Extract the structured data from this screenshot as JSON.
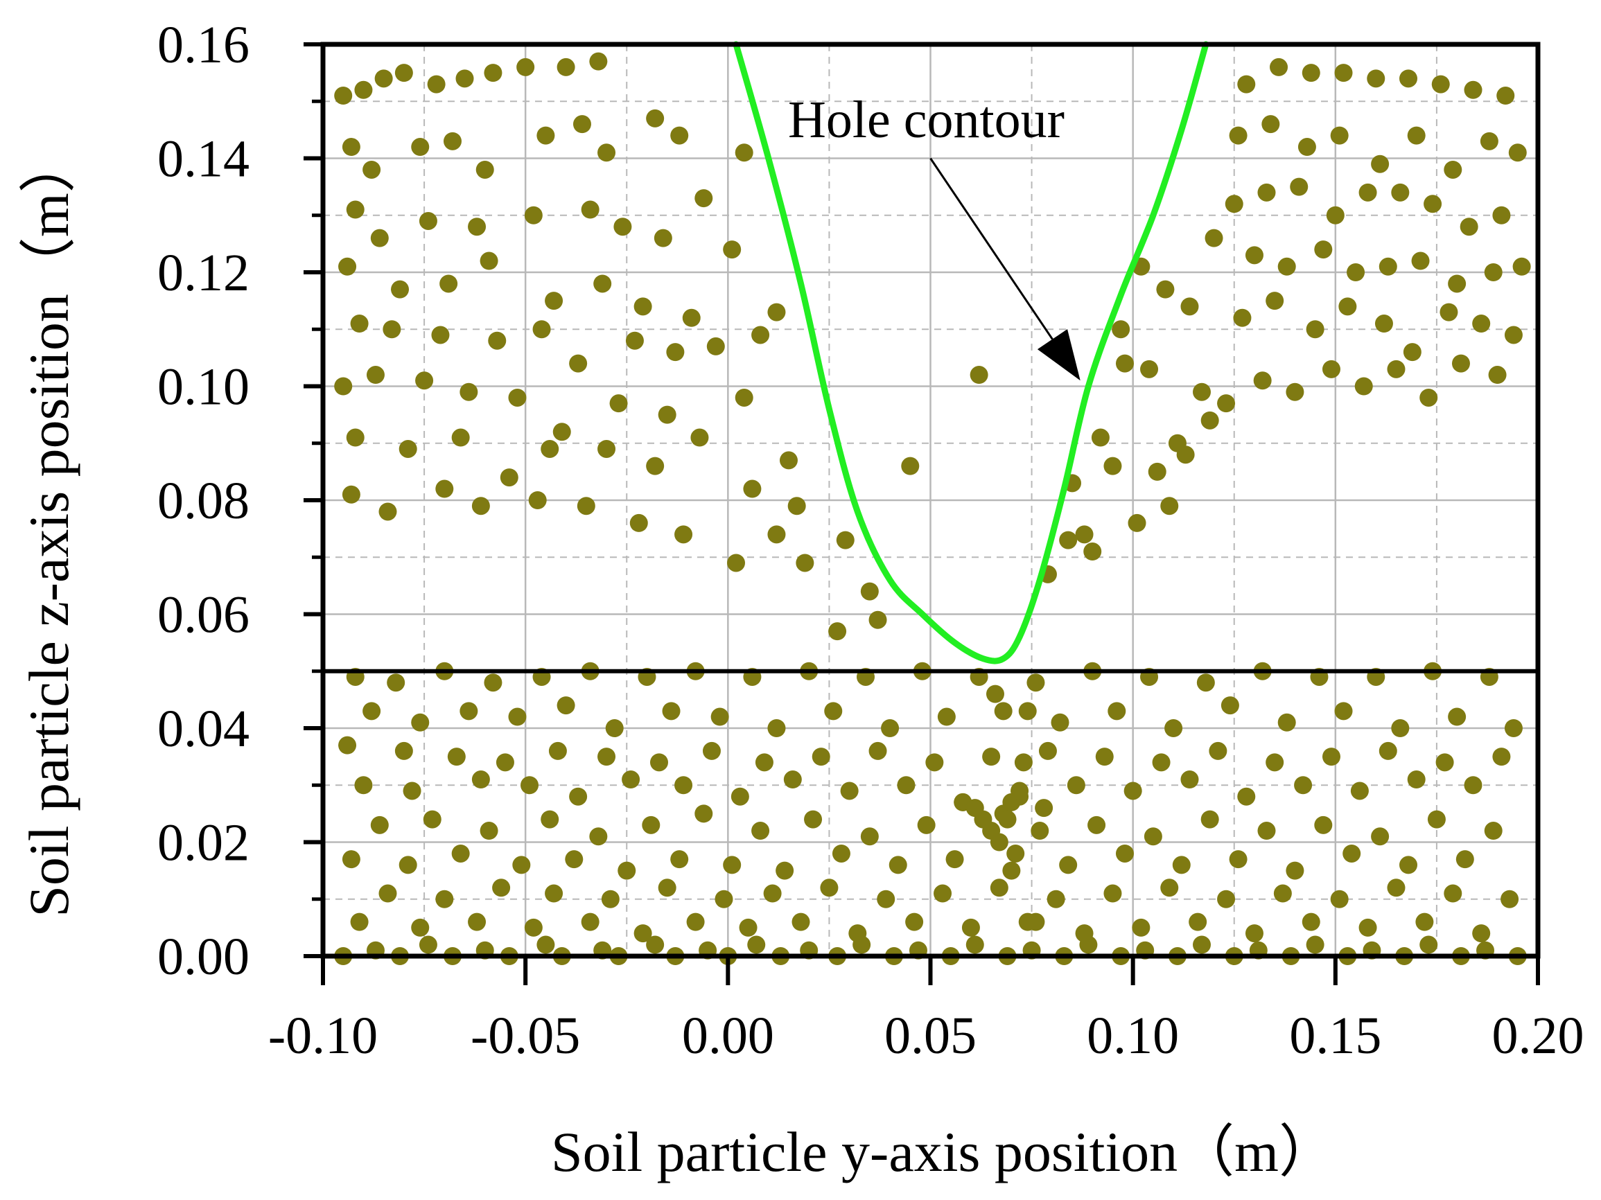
{
  "chart_data": {
    "type": "scatter",
    "title": "",
    "xlabel": "Soil particle y-axis position（m）",
    "ylabel": "Soil particle z-axis position（m）",
    "xlim": [
      -0.1,
      0.2
    ],
    "ylim": [
      0.0,
      0.16
    ],
    "x_ticks": [
      "-0.10",
      "-0.05",
      "0.00",
      "0.05",
      "0.10",
      "0.15",
      "0.20"
    ],
    "y_ticks": [
      "0.00",
      "0.02",
      "0.04",
      "0.06",
      "0.08",
      "0.10",
      "0.12",
      "0.14",
      "0.16"
    ],
    "grid": true,
    "horizontal_line_y": 0.05,
    "colors": {
      "particles": "#7f7a12",
      "contour": "#22ee22",
      "axes": "#000000",
      "grid": "#b8b8b8"
    },
    "annotation": {
      "text": "Hole contour",
      "arrow_tail": [
        0.05,
        0.14
      ],
      "arrow_head": [
        0.087,
        0.101
      ]
    },
    "hole_contour": [
      [
        0.002,
        0.16
      ],
      [
        0.01,
        0.14
      ],
      [
        0.018,
        0.118
      ],
      [
        0.025,
        0.096
      ],
      [
        0.032,
        0.078
      ],
      [
        0.04,
        0.066
      ],
      [
        0.048,
        0.06
      ],
      [
        0.056,
        0.055
      ],
      [
        0.063,
        0.0522
      ],
      [
        0.068,
        0.0522
      ],
      [
        0.072,
        0.056
      ],
      [
        0.077,
        0.066
      ],
      [
        0.083,
        0.082
      ],
      [
        0.089,
        0.1
      ],
      [
        0.097,
        0.116
      ],
      [
        0.105,
        0.13
      ],
      [
        0.112,
        0.145
      ],
      [
        0.118,
        0.16
      ]
    ],
    "particles_x": [
      -0.095,
      -0.09,
      -0.085,
      -0.08,
      -0.072,
      -0.065,
      -0.058,
      -0.05,
      -0.04,
      -0.032,
      -0.093,
      -0.088,
      -0.076,
      -0.068,
      -0.06,
      -0.045,
      -0.036,
      -0.03,
      -0.018,
      -0.012,
      -0.092,
      -0.086,
      -0.074,
      -0.062,
      -0.048,
      -0.034,
      -0.026,
      -0.016,
      -0.006,
      0.004,
      -0.094,
      -0.081,
      -0.069,
      -0.059,
      -0.043,
      -0.031,
      -0.021,
      -0.009,
      0.001,
      0.012,
      -0.091,
      -0.083,
      -0.071,
      -0.057,
      -0.046,
      -0.037,
      -0.023,
      -0.013,
      -0.003,
      0.008,
      -0.095,
      -0.087,
      -0.075,
      -0.064,
      -0.052,
      -0.041,
      -0.027,
      -0.015,
      0.004,
      0.015,
      -0.092,
      -0.079,
      -0.066,
      -0.054,
      -0.044,
      -0.03,
      -0.018,
      -0.007,
      0.006,
      0.017,
      -0.093,
      -0.084,
      -0.07,
      -0.061,
      -0.047,
      -0.035,
      -0.022,
      -0.011,
      0.002,
      0.012,
      0.128,
      0.136,
      0.144,
      0.152,
      0.16,
      0.168,
      0.176,
      0.184,
      0.192,
      0.126,
      0.134,
      0.143,
      0.151,
      0.161,
      0.17,
      0.179,
      0.188,
      0.195,
      0.125,
      0.133,
      0.141,
      0.15,
      0.158,
      0.166,
      0.174,
      0.183,
      0.191,
      0.13,
      0.138,
      0.147,
      0.155,
      0.163,
      0.171,
      0.18,
      0.189,
      0.196,
      0.127,
      0.135,
      0.145,
      0.153,
      0.162,
      0.169,
      0.178,
      0.186,
      0.194,
      0.132,
      0.14,
      0.149,
      0.157,
      0.165,
      0.173,
      0.181,
      0.19,
      0.102,
      0.108,
      0.114,
      0.12,
      0.097,
      0.104,
      0.111,
      0.117,
      0.123,
      0.092,
      0.098,
      0.106,
      0.113,
      0.119,
      0.095,
      0.101,
      0.109,
      0.062,
      0.045,
      0.084,
      0.029,
      0.035,
      0.037,
      0.027,
      0.019,
      0.085,
      0.088,
      0.079,
      0.09,
      -0.092,
      -0.082,
      -0.07,
      -0.058,
      -0.046,
      -0.034,
      -0.02,
      -0.008,
      0.006,
      0.02,
      0.034,
      0.048,
      0.062,
      0.076,
      0.09,
      0.104,
      0.118,
      0.132,
      0.146,
      0.16,
      0.174,
      0.188,
      -0.088,
      -0.076,
      -0.064,
      -0.052,
      -0.04,
      -0.028,
      -0.014,
      -0.002,
      0.012,
      0.026,
      0.04,
      0.054,
      0.068,
      0.082,
      0.096,
      0.11,
      0.124,
      0.138,
      0.152,
      0.166,
      0.18,
      0.194,
      -0.094,
      -0.08,
      -0.067,
      -0.055,
      -0.042,
      -0.03,
      -0.017,
      -0.004,
      0.009,
      0.023,
      0.037,
      0.051,
      0.065,
      0.079,
      0.093,
      0.107,
      0.121,
      0.135,
      0.149,
      0.163,
      0.177,
      0.191,
      -0.09,
      -0.078,
      -0.061,
      -0.049,
      -0.037,
      -0.024,
      -0.011,
      0.003,
      0.016,
      0.03,
      0.044,
      0.058,
      0.072,
      0.086,
      0.1,
      0.114,
      0.128,
      0.142,
      0.156,
      0.17,
      0.184,
      -0.086,
      -0.073,
      -0.059,
      -0.044,
      -0.032,
      -0.019,
      -0.006,
      0.008,
      0.021,
      0.035,
      0.049,
      0.063,
      0.077,
      0.091,
      0.105,
      0.119,
      0.133,
      0.147,
      0.161,
      0.175,
      0.189,
      -0.093,
      -0.079,
      -0.066,
      -0.051,
      -0.038,
      -0.025,
      -0.012,
      0.001,
      0.014,
      0.028,
      0.042,
      0.056,
      0.07,
      0.084,
      0.098,
      0.112,
      0.126,
      0.14,
      0.154,
      0.168,
      0.182,
      -0.084,
      -0.07,
      -0.056,
      -0.043,
      -0.029,
      -0.015,
      -0.001,
      0.011,
      0.025,
      0.039,
      0.053,
      0.067,
      0.081,
      0.095,
      0.109,
      0.123,
      0.137,
      0.151,
      0.165,
      0.179,
      0.193,
      -0.091,
      -0.076,
      -0.062,
      -0.048,
      -0.034,
      -0.021,
      -0.008,
      0.005,
      0.018,
      0.032,
      0.046,
      0.06,
      0.074,
      0.088,
      0.102,
      0.116,
      0.13,
      0.144,
      0.158,
      0.172,
      0.186,
      -0.087,
      -0.074,
      -0.06,
      -0.045,
      -0.031,
      -0.018,
      -0.005,
      0.007,
      0.02,
      0.033,
      0.047,
      0.061,
      0.075,
      0.089,
      0.103,
      0.117,
      0.131,
      0.145,
      0.159,
      0.173,
      0.187,
      -0.095,
      -0.081,
      -0.068,
      -0.054,
      -0.041,
      -0.027,
      -0.013,
      0.0,
      0.013,
      0.027,
      0.041,
      0.055,
      0.069,
      0.083,
      0.097,
      0.111,
      0.125,
      0.139,
      0.153,
      0.167,
      0.181,
      0.195,
      0.065,
      0.068,
      0.07,
      0.072,
      0.066,
      0.074,
      0.067,
      0.071,
      0.078,
      0.058,
      0.061,
      0.076,
      0.069,
      0.073
    ],
    "particles_y": [
      0.151,
      0.152,
      0.154,
      0.155,
      0.153,
      0.154,
      0.155,
      0.156,
      0.156,
      0.157,
      0.142,
      0.138,
      0.142,
      0.143,
      0.138,
      0.144,
      0.146,
      0.141,
      0.147,
      0.144,
      0.131,
      0.126,
      0.129,
      0.128,
      0.13,
      0.131,
      0.128,
      0.126,
      0.133,
      0.141,
      0.121,
      0.117,
      0.118,
      0.122,
      0.115,
      0.118,
      0.114,
      0.112,
      0.124,
      0.113,
      0.111,
      0.11,
      0.109,
      0.108,
      0.11,
      0.104,
      0.108,
      0.106,
      0.107,
      0.109,
      0.1,
      0.102,
      0.101,
      0.099,
      0.098,
      0.092,
      0.097,
      0.095,
      0.098,
      0.087,
      0.091,
      0.089,
      0.091,
      0.084,
      0.089,
      0.089,
      0.086,
      0.091,
      0.082,
      0.079,
      0.081,
      0.078,
      0.082,
      0.079,
      0.08,
      0.079,
      0.076,
      0.074,
      0.069,
      0.074,
      0.153,
      0.156,
      0.155,
      0.155,
      0.154,
      0.154,
      0.153,
      0.152,
      0.151,
      0.144,
      0.146,
      0.142,
      0.144,
      0.139,
      0.144,
      0.138,
      0.143,
      0.141,
      0.132,
      0.134,
      0.135,
      0.13,
      0.134,
      0.134,
      0.132,
      0.128,
      0.13,
      0.123,
      0.121,
      0.124,
      0.12,
      0.121,
      0.122,
      0.118,
      0.12,
      0.121,
      0.112,
      0.115,
      0.11,
      0.114,
      0.111,
      0.106,
      0.113,
      0.111,
      0.109,
      0.101,
      0.099,
      0.103,
      0.1,
      0.103,
      0.098,
      0.104,
      0.102,
      0.121,
      0.117,
      0.114,
      0.126,
      0.11,
      0.103,
      0.09,
      0.099,
      0.097,
      0.091,
      0.104,
      0.085,
      0.088,
      0.094,
      0.086,
      0.076,
      0.079,
      0.102,
      0.086,
      0.073,
      0.073,
      0.064,
      0.059,
      0.057,
      0.069,
      0.083,
      0.074,
      0.067,
      0.071,
      0.049,
      0.048,
      0.05,
      0.048,
      0.049,
      0.05,
      0.049,
      0.05,
      0.049,
      0.05,
      0.049,
      0.05,
      0.049,
      0.048,
      0.05,
      0.049,
      0.048,
      0.05,
      0.049,
      0.049,
      0.05,
      0.049,
      0.043,
      0.041,
      0.043,
      0.042,
      0.044,
      0.04,
      0.043,
      0.042,
      0.04,
      0.043,
      0.04,
      0.042,
      0.043,
      0.041,
      0.043,
      0.04,
      0.044,
      0.041,
      0.043,
      0.04,
      0.042,
      0.04,
      0.037,
      0.036,
      0.035,
      0.034,
      0.036,
      0.035,
      0.034,
      0.036,
      0.034,
      0.035,
      0.036,
      0.034,
      0.035,
      0.036,
      0.035,
      0.034,
      0.036,
      0.034,
      0.035,
      0.036,
      0.034,
      0.035,
      0.03,
      0.029,
      0.031,
      0.03,
      0.028,
      0.031,
      0.03,
      0.028,
      0.031,
      0.029,
      0.03,
      0.027,
      0.028,
      0.03,
      0.029,
      0.031,
      0.028,
      0.03,
      0.029,
      0.031,
      0.03,
      0.023,
      0.024,
      0.022,
      0.024,
      0.021,
      0.023,
      0.025,
      0.022,
      0.024,
      0.021,
      0.023,
      0.024,
      0.022,
      0.023,
      0.021,
      0.024,
      0.022,
      0.023,
      0.021,
      0.024,
      0.022,
      0.017,
      0.016,
      0.018,
      0.016,
      0.017,
      0.015,
      0.017,
      0.016,
      0.015,
      0.018,
      0.016,
      0.017,
      0.015,
      0.016,
      0.018,
      0.016,
      0.017,
      0.015,
      0.018,
      0.016,
      0.017,
      0.011,
      0.01,
      0.012,
      0.011,
      0.01,
      0.012,
      0.01,
      0.011,
      0.012,
      0.01,
      0.011,
      0.012,
      0.01,
      0.011,
      0.012,
      0.01,
      0.011,
      0.01,
      0.012,
      0.011,
      0.01,
      0.006,
      0.005,
      0.006,
      0.005,
      0.006,
      0.004,
      0.006,
      0.005,
      0.006,
      0.004,
      0.006,
      0.005,
      0.006,
      0.004,
      0.005,
      0.006,
      0.004,
      0.006,
      0.005,
      0.006,
      0.004,
      0.001,
      0.002,
      0.001,
      0.002,
      0.001,
      0.002,
      0.001,
      0.002,
      0.001,
      0.002,
      0.001,
      0.002,
      0.001,
      0.002,
      0.001,
      0.002,
      0.001,
      0.002,
      0.001,
      0.002,
      0.001,
      0.0,
      0.0,
      0.0,
      0.0,
      0.0,
      0.0,
      0.0,
      0.0,
      0.0,
      0.0,
      0.0,
      0.0,
      0.0,
      0.0,
      0.0,
      0.0,
      0.0,
      0.0,
      0.0,
      0.0,
      0.0,
      0.0,
      0.022,
      0.025,
      0.027,
      0.029,
      0.046,
      0.043,
      0.02,
      0.018,
      0.026,
      0.027,
      0.026,
      0.006,
      0.024,
      0.034
    ]
  }
}
